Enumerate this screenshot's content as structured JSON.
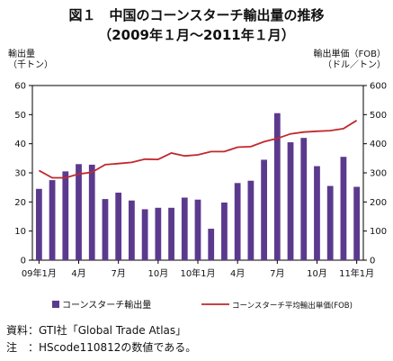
{
  "figure": {
    "title_line1": "図１　中国のコーンスターチ輸出量の推移",
    "title_line2": "（2009年１月～2011年１月）",
    "source_note": "資料：GTI社「Global Trade Atlas」",
    "footnote": "注　：HScode110812の数値である。"
  },
  "chart_data": {
    "type": "bar",
    "months": [
      "2009-01",
      "2009-02",
      "2009-03",
      "2009-04",
      "2009-05",
      "2009-06",
      "2009-07",
      "2009-08",
      "2009-09",
      "2009-10",
      "2009-11",
      "2009-12",
      "2010-01",
      "2010-02",
      "2010-03",
      "2010-04",
      "2010-05",
      "2010-06",
      "2010-07",
      "2010-08",
      "2010-09",
      "2010-10",
      "2010-11",
      "2010-12",
      "2011-01"
    ],
    "x_tick_labels": [
      "09年1月",
      "4月",
      "7月",
      "10月",
      "10年1月",
      "4月",
      "7月",
      "10月",
      "11年1月"
    ],
    "x_tick_index": [
      0,
      3,
      6,
      9,
      12,
      15,
      18,
      21,
      24
    ],
    "left_axis": {
      "label_line1": "輸出量",
      "label_line2": "（千トン）",
      "min": 0,
      "max": 60,
      "step": 10,
      "ticks": [
        "0",
        "10",
        "20",
        "30",
        "40",
        "50",
        "60"
      ]
    },
    "right_axis": {
      "label_line1": "輸出単価（FOB）",
      "label_line2": "（ドル／トン）",
      "min": 0,
      "max": 600,
      "step": 100,
      "ticks": [
        "0",
        "100",
        "200",
        "300",
        "400",
        "500",
        "600"
      ]
    },
    "series": [
      {
        "name": "コーンスターチ輸出量",
        "type": "bar",
        "axis": "left",
        "color": "#5b3a8e",
        "values": [
          24.5,
          27.5,
          30.5,
          33.0,
          32.8,
          21.0,
          23.2,
          20.5,
          17.5,
          18.0,
          18.0,
          21.5,
          20.8,
          10.8,
          19.8,
          26.5,
          27.3,
          34.5,
          50.5,
          40.5,
          42.0,
          32.3,
          25.5,
          35.5,
          25.2
        ]
      },
      {
        "name": "コーンスターチ平均輸出単価(FOB)",
        "type": "line",
        "axis": "right",
        "color": "#c0282d",
        "values": [
          308,
          283,
          283,
          296,
          302,
          328,
          332,
          336,
          347,
          346,
          368,
          358,
          362,
          373,
          373,
          388,
          390,
          407,
          418,
          434,
          440,
          443,
          445,
          452,
          480
        ]
      }
    ],
    "grid": false,
    "legend_position": "bottom"
  }
}
